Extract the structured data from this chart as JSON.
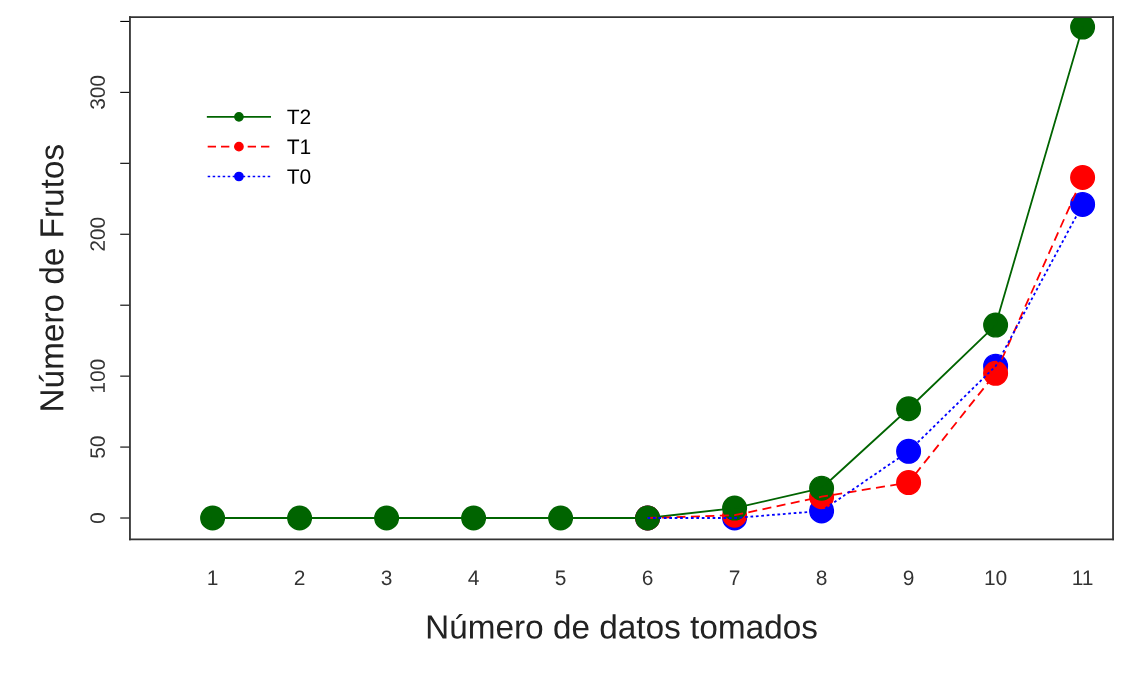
{
  "chart_data": {
    "type": "line",
    "xlabel": "Número de datos tomados",
    "ylabel": "Número de Frutos",
    "x": [
      1,
      2,
      3,
      4,
      5,
      6,
      7,
      8,
      9,
      10,
      11
    ],
    "series": [
      {
        "name": "T2",
        "color": "#006400",
        "line_style": "solid",
        "values": [
          0,
          0,
          0,
          0,
          0,
          0,
          7,
          21,
          77,
          136,
          346
        ]
      },
      {
        "name": "T1",
        "color": "#ff0000",
        "line_style": "dashed",
        "values": [
          null,
          null,
          null,
          null,
          null,
          0,
          2,
          15,
          25,
          102,
          240
        ]
      },
      {
        "name": "T0",
        "color": "#0000ff",
        "line_style": "dotted",
        "values": [
          null,
          null,
          null,
          null,
          null,
          0,
          0,
          5,
          47,
          107,
          221
        ]
      }
    ],
    "xlim": [
      0.05,
      11.35
    ],
    "ylim": [
      -15,
      353
    ],
    "xticks": [
      1,
      2,
      3,
      4,
      5,
      6,
      7,
      8,
      9,
      10,
      11
    ],
    "yticks": [
      0,
      50,
      100,
      {
        "value": 150,
        "label": null
      },
      200,
      {
        "value": 250,
        "label": null
      },
      300,
      {
        "value": 350,
        "label": null
      }
    ],
    "marker": "circle",
    "legend": "top left",
    "grid": false
  }
}
